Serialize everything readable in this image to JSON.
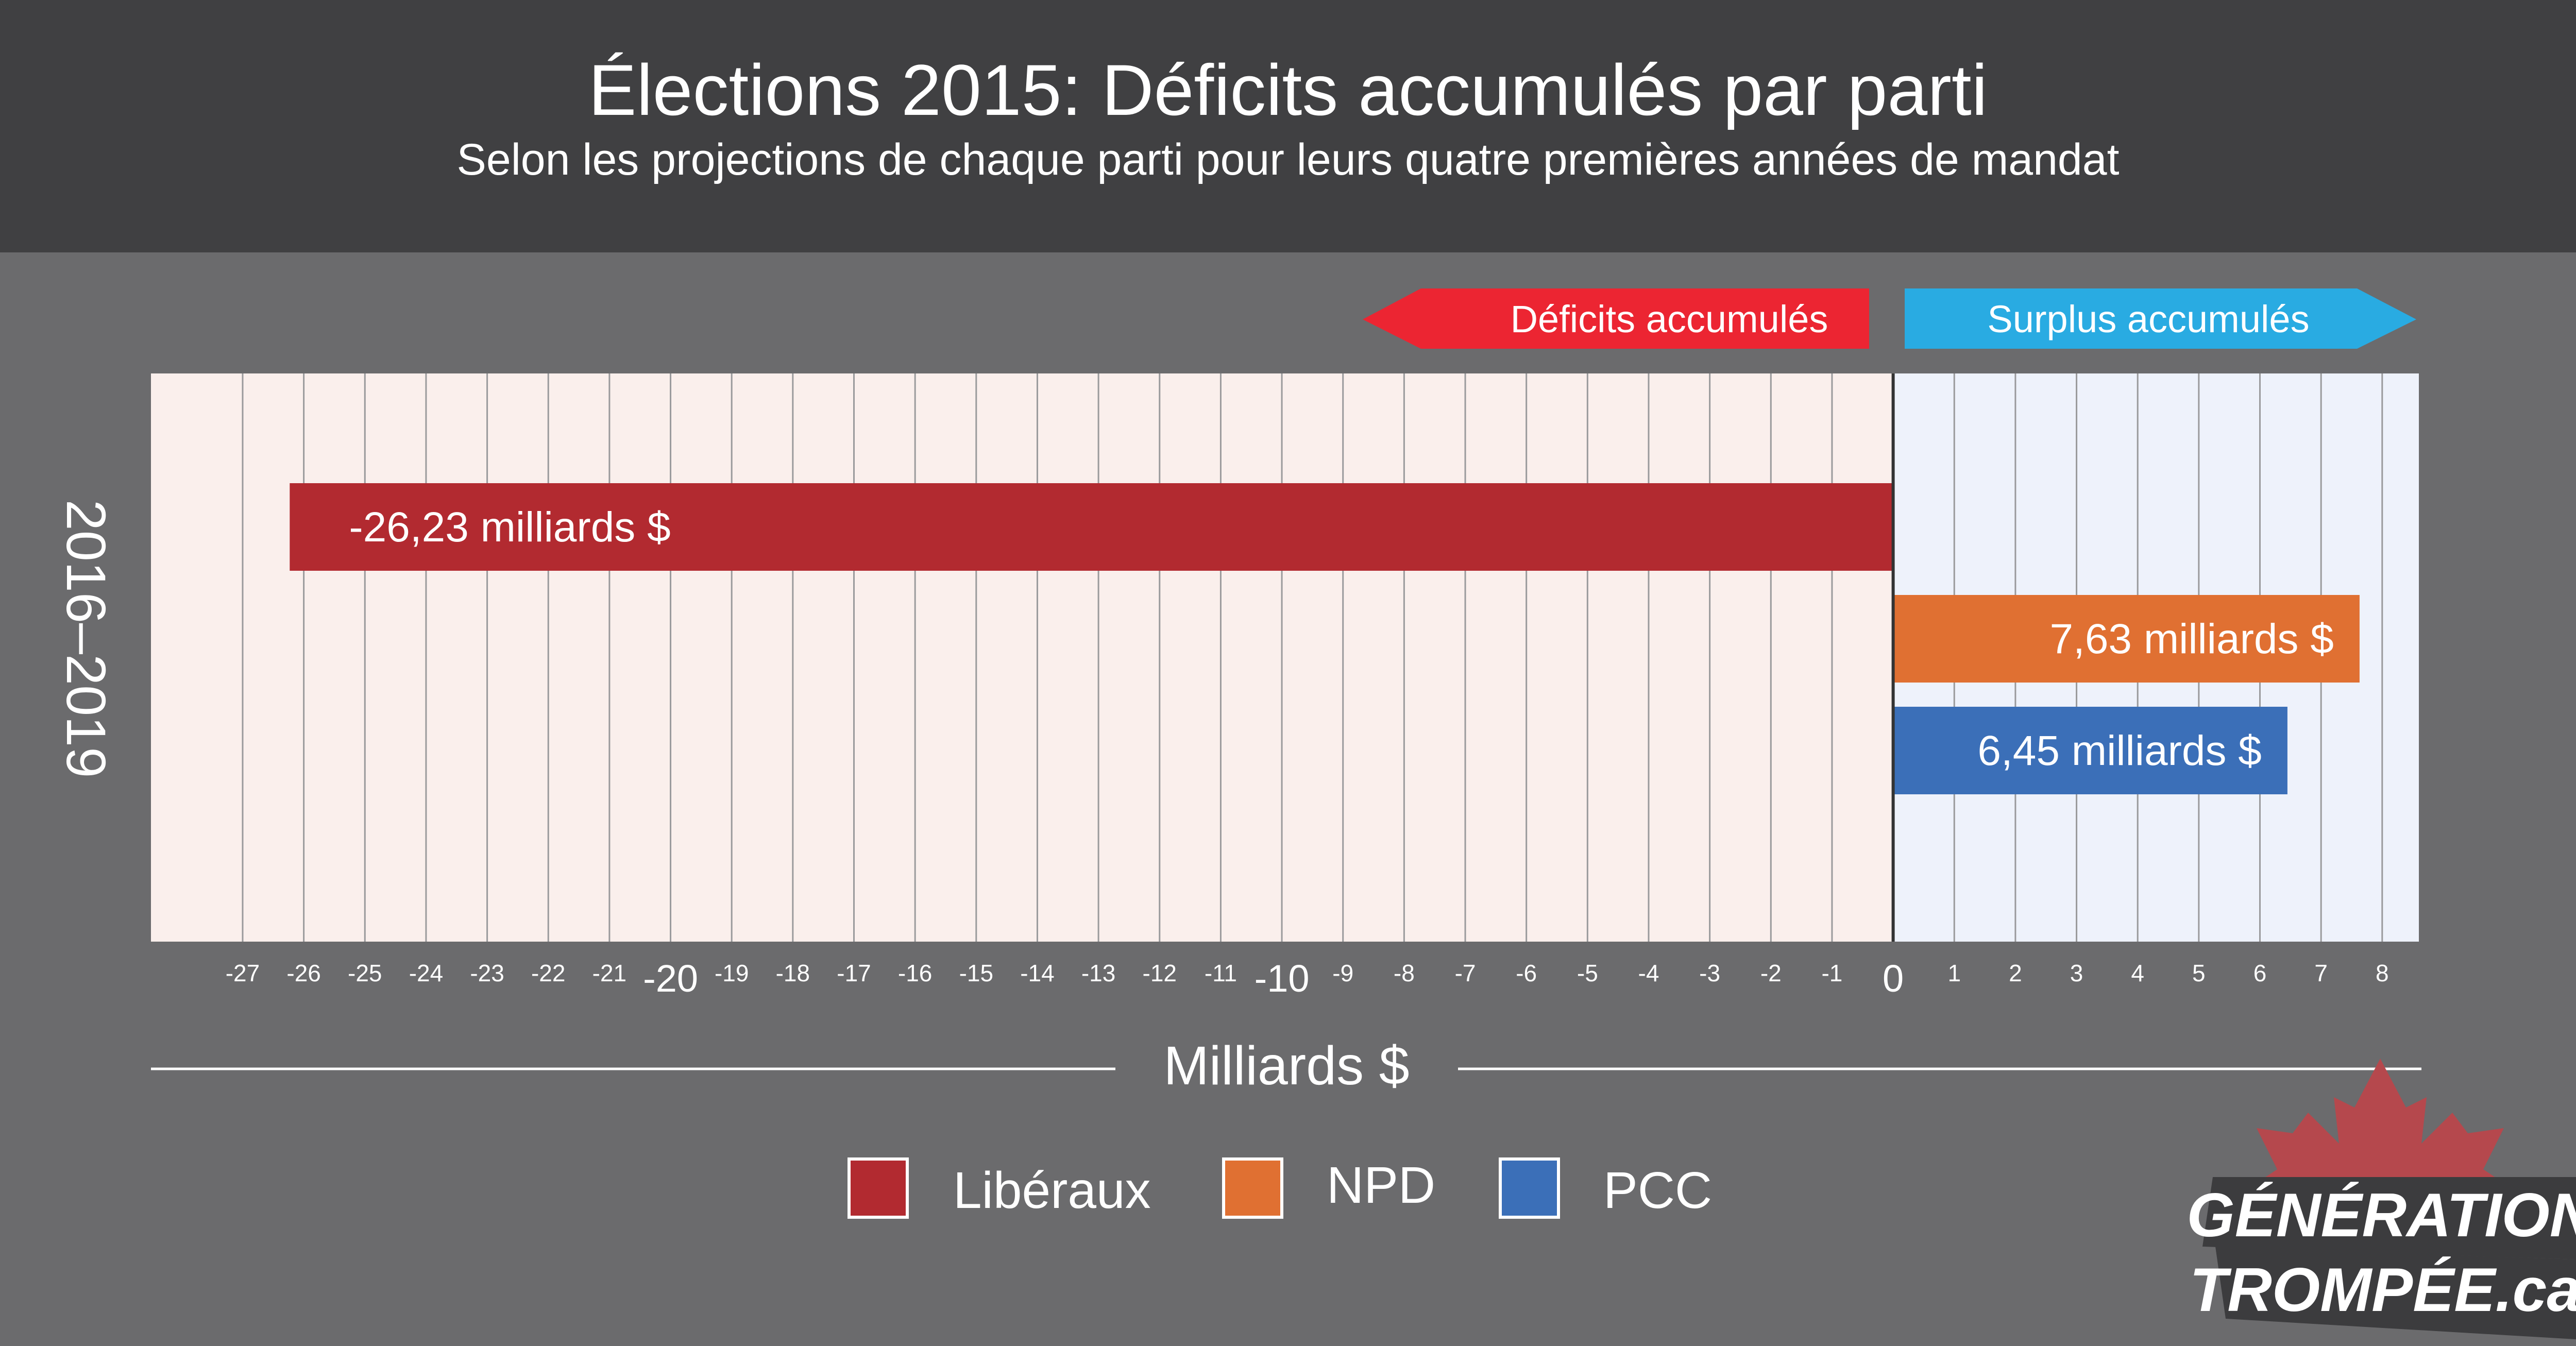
{
  "title": "Élections 2015: Déficits accumulés par parti",
  "subtitle": "Selon les projections de chaque parti pour leurs quatre premières années de mandat",
  "arrows": {
    "deficit_label": "Déficits accumulés",
    "surplus_label": "Surplus accumulés"
  },
  "colors": {
    "deficit_arrow": "#ec2532",
    "surplus_arrow": "#29abe2",
    "deficit_bg": "#faefec",
    "surplus_bg": "#eef2fb",
    "Libéraux": "#b22a30",
    "NPD": "#e07032",
    "PCC": "#3b6fb8"
  },
  "logo": {
    "line1": "GÉNÉRATION",
    "line2": "TROMPÉE.ca"
  },
  "chart_data": {
    "type": "bar",
    "orientation": "horizontal",
    "title": "Élections 2015: Déficits accumulés par parti",
    "subtitle": "Selon les projections de chaque parti pour leurs quatre premières années de mandat",
    "xlabel": "Milliards $",
    "ylabel": "2016–2019",
    "xlim": [
      -28.5,
      8.6
    ],
    "grid": true,
    "legend_position": "bottom",
    "x_ticks": [
      -27,
      -26,
      -25,
      -24,
      -23,
      -22,
      -21,
      -20,
      -19,
      -18,
      -17,
      -16,
      -15,
      -14,
      -13,
      -12,
      -11,
      -10,
      -9,
      -8,
      -7,
      -6,
      -5,
      -4,
      -3,
      -2,
      -1,
      0,
      1,
      2,
      3,
      4,
      5,
      6,
      7,
      8
    ],
    "series": [
      {
        "name": "Libéraux",
        "value": -26.23,
        "label": "-26,23 milliards $"
      },
      {
        "name": "NPD",
        "value": 7.63,
        "label": "7,63 milliards $"
      },
      {
        "name": "PCC",
        "value": 6.45,
        "label": "6,45 milliards $"
      }
    ],
    "legend": [
      "Libéraux",
      "NPD",
      "PCC"
    ]
  }
}
